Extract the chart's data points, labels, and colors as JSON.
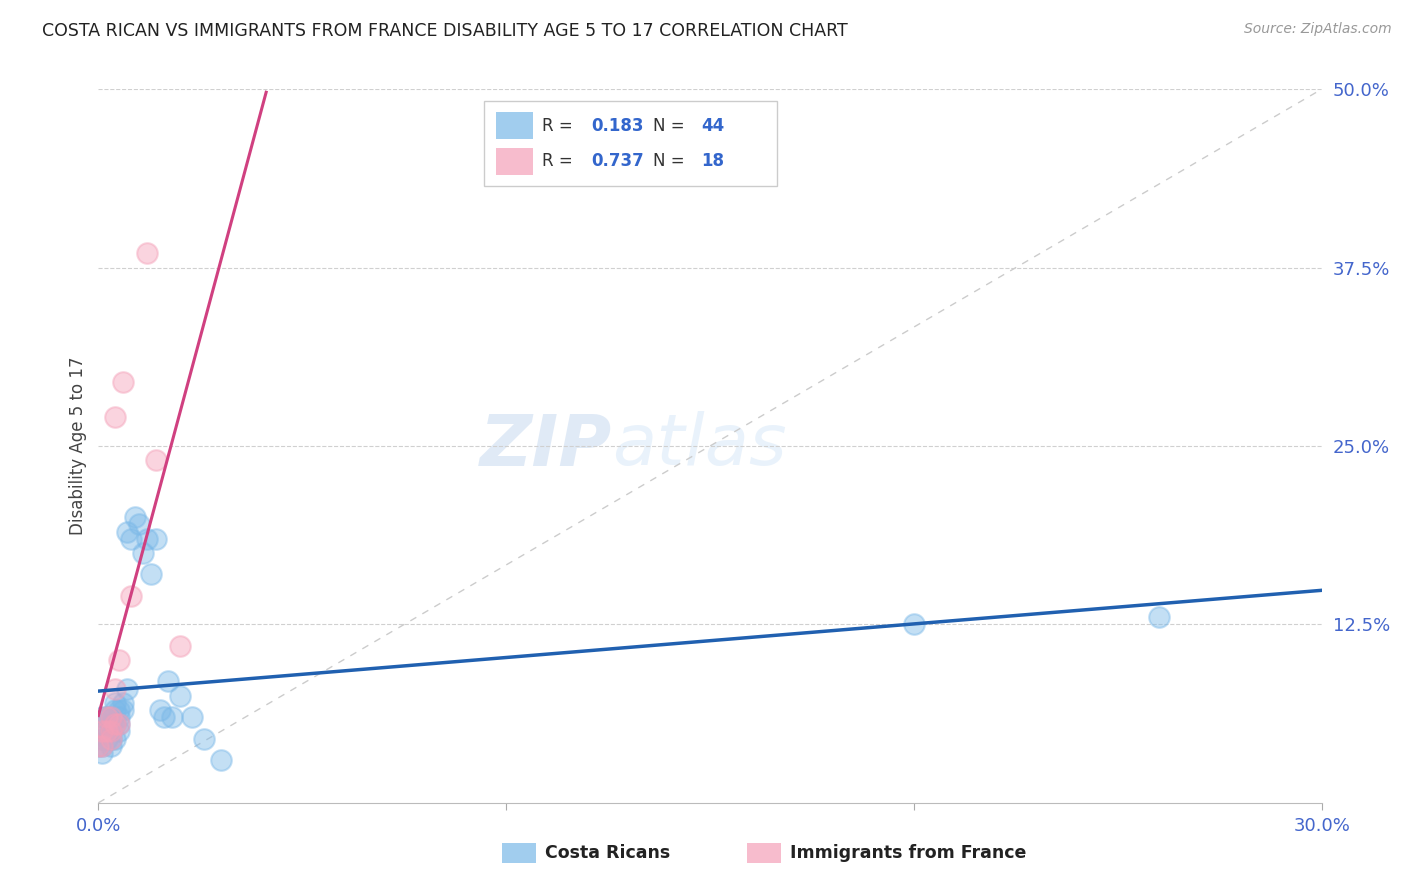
{
  "title": "COSTA RICAN VS IMMIGRANTS FROM FRANCE DISABILITY AGE 5 TO 17 CORRELATION CHART",
  "source": "Source: ZipAtlas.com",
  "ylabel": "Disability Age 5 to 17",
  "blue_color": "#7ab8e8",
  "pink_color": "#f4a0b8",
  "blue_line_color": "#2060b0",
  "pink_line_color": "#d04080",
  "xlim": [
    0.0,
    0.3
  ],
  "ylim": [
    0.0,
    0.5
  ],
  "blue_scatter_x": [
    0.0,
    0.001,
    0.001,
    0.001,
    0.001,
    0.001,
    0.002,
    0.002,
    0.002,
    0.002,
    0.003,
    0.003,
    0.003,
    0.003,
    0.003,
    0.004,
    0.004,
    0.004,
    0.004,
    0.005,
    0.005,
    0.005,
    0.005,
    0.006,
    0.006,
    0.007,
    0.007,
    0.008,
    0.009,
    0.01,
    0.011,
    0.012,
    0.013,
    0.014,
    0.015,
    0.016,
    0.017,
    0.018,
    0.02,
    0.023,
    0.026,
    0.03,
    0.2,
    0.26
  ],
  "blue_scatter_y": [
    0.04,
    0.04,
    0.06,
    0.055,
    0.045,
    0.035,
    0.05,
    0.045,
    0.06,
    0.06,
    0.06,
    0.055,
    0.05,
    0.045,
    0.04,
    0.07,
    0.065,
    0.055,
    0.045,
    0.065,
    0.06,
    0.055,
    0.05,
    0.07,
    0.065,
    0.08,
    0.19,
    0.185,
    0.2,
    0.195,
    0.175,
    0.185,
    0.16,
    0.185,
    0.065,
    0.06,
    0.085,
    0.06,
    0.075,
    0.06,
    0.045,
    0.03,
    0.125,
    0.13
  ],
  "pink_scatter_x": [
    0.0,
    0.001,
    0.001,
    0.002,
    0.002,
    0.003,
    0.003,
    0.003,
    0.004,
    0.004,
    0.004,
    0.005,
    0.005,
    0.006,
    0.008,
    0.012,
    0.014,
    0.02
  ],
  "pink_scatter_y": [
    0.04,
    0.05,
    0.04,
    0.06,
    0.05,
    0.06,
    0.05,
    0.045,
    0.27,
    0.08,
    0.055,
    0.1,
    0.055,
    0.295,
    0.145,
    0.385,
    0.24,
    0.11
  ]
}
